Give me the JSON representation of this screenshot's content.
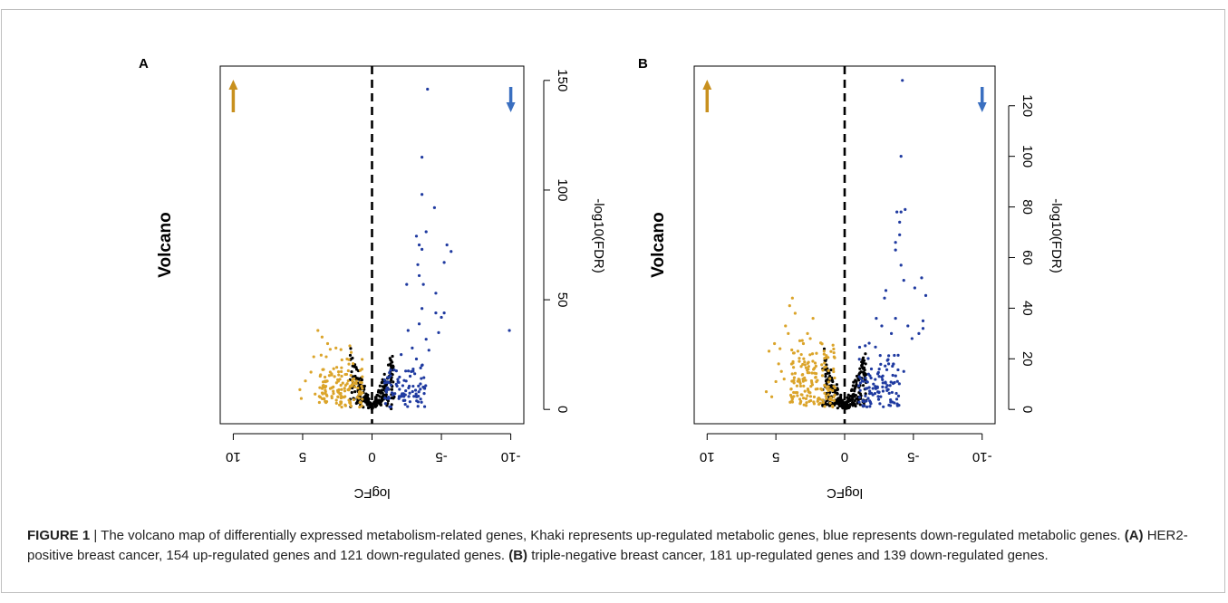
{
  "figure": {
    "caption_label": "FIGURE 1",
    "caption_sep": " | ",
    "caption_intro": "The volcano map of differentially expressed metabolism-related genes, Khaki represents up-regulated metabolic genes, blue represents down-regulated metabolic genes. ",
    "caption_a_label": "(A)",
    "caption_a_text": " HER2-positive breast cancer, 154 up-regulated genes and 121 down-regulated genes. ",
    "caption_b_label": "(B)",
    "caption_b_text": " triple-negative breast cancer, 181 up-regulated genes and 139 down-regulated genes."
  },
  "colors": {
    "up": "#dba42a",
    "down": "#1f3aa0",
    "neutral": "#000000",
    "arrow_up": "#c8901e",
    "arrow_down": "#3a6fc0"
  },
  "chart_data": [
    {
      "panel": "A",
      "type": "scatter",
      "title": "Volcano",
      "xlabel": "logFC",
      "ylabel": "-log10(FDR)",
      "xlim": [
        10,
        -10
      ],
      "ylim": [
        0,
        150
      ],
      "xticks": [
        10,
        5,
        0,
        -5,
        -10
      ],
      "yticks": [
        0,
        50,
        100,
        150
      ],
      "cutoff_x": 0,
      "up_count": 154,
      "down_count": 121,
      "seed": 11,
      "up_points": [
        [
          3.9,
          36
        ],
        [
          3.6,
          33
        ],
        [
          3.2,
          30
        ],
        [
          4.2,
          24
        ],
        [
          5.2,
          9
        ],
        [
          5.1,
          5
        ],
        [
          4.8,
          13
        ],
        [
          4.4,
          17
        ],
        [
          3.3,
          24
        ],
        [
          2.6,
          28
        ],
        [
          2.2,
          19
        ],
        [
          1.8,
          23
        ],
        [
          1.5,
          26
        ],
        [
          1.3,
          14
        ],
        [
          1.9,
          11
        ],
        [
          2.7,
          15
        ],
        [
          3.5,
          11
        ],
        [
          4.1,
          7
        ],
        [
          2.9,
          6
        ],
        [
          1.6,
          29
        ]
      ],
      "up_cluster": {
        "x_center": 2.2,
        "x_spread": 1.6,
        "y_max": 28,
        "n": 134
      },
      "down_points": [
        [
          -4.0,
          146
        ],
        [
          -3.6,
          115
        ],
        [
          -4.5,
          92
        ],
        [
          -3.6,
          98
        ],
        [
          -5.4,
          75
        ],
        [
          -5.7,
          72
        ],
        [
          -5.2,
          67
        ],
        [
          -3.2,
          79
        ],
        [
          -3.4,
          75
        ],
        [
          -3.6,
          73
        ],
        [
          -3.9,
          81
        ],
        [
          -3.3,
          66
        ],
        [
          -3.4,
          61
        ],
        [
          -4.6,
          53
        ],
        [
          -3.7,
          57
        ],
        [
          -2.5,
          57
        ],
        [
          -4.6,
          44
        ],
        [
          -5.2,
          44
        ],
        [
          -5.0,
          42
        ],
        [
          -3.6,
          46
        ],
        [
          -3.4,
          39
        ],
        [
          -4.8,
          35
        ],
        [
          -9.9,
          36
        ],
        [
          -3.9,
          32
        ],
        [
          -2.6,
          36
        ],
        [
          -2.9,
          28
        ],
        [
          -4.1,
          27
        ],
        [
          -3.2,
          23
        ],
        [
          -2.1,
          25
        ],
        [
          -1.6,
          18
        ]
      ],
      "down_cluster": {
        "x_center": -2.4,
        "x_spread": 1.5,
        "y_max": 26,
        "n": 91
      },
      "neutral_cluster": {
        "n": 230,
        "x_max": 1.6,
        "y_scale": 17
      }
    },
    {
      "panel": "B",
      "type": "scatter",
      "title": "Volcano",
      "xlabel": "logFC",
      "ylabel": "-log10(FDR)",
      "xlim": [
        10,
        -10
      ],
      "ylim": [
        0,
        130
      ],
      "xticks": [
        10,
        5,
        0,
        -5,
        -10
      ],
      "yticks": [
        0,
        20,
        40,
        60,
        80,
        100,
        120
      ],
      "cutoff_x": 0,
      "up_count": 181,
      "down_count": 139,
      "seed": 23,
      "up_points": [
        [
          3.8,
          44
        ],
        [
          4.0,
          41
        ],
        [
          3.6,
          38
        ],
        [
          4.3,
          33
        ],
        [
          4.1,
          30
        ],
        [
          5.1,
          26
        ],
        [
          4.7,
          24
        ],
        [
          5.5,
          23
        ],
        [
          4.8,
          18
        ],
        [
          4.6,
          15
        ],
        [
          5.0,
          11
        ],
        [
          5.7,
          7
        ],
        [
          5.3,
          5
        ],
        [
          4.4,
          12
        ],
        [
          3.4,
          23
        ],
        [
          3.0,
          26
        ],
        [
          2.7,
          30
        ],
        [
          2.3,
          36
        ],
        [
          3.3,
          19
        ],
        [
          2.5,
          28
        ],
        [
          3.9,
          8
        ]
      ],
      "up_cluster": {
        "x_center": 2.3,
        "x_spread": 1.7,
        "y_max": 30,
        "n": 160
      },
      "down_points": [
        [
          -4.2,
          130
        ],
        [
          -4.1,
          100
        ],
        [
          -4.4,
          79
        ],
        [
          -4.1,
          78
        ],
        [
          -3.8,
          78
        ],
        [
          -4.0,
          74
        ],
        [
          -4.0,
          69
        ],
        [
          -3.7,
          66
        ],
        [
          -3.7,
          63
        ],
        [
          -4.1,
          57
        ],
        [
          -4.3,
          51
        ],
        [
          -5.6,
          52
        ],
        [
          -5.9,
          45
        ],
        [
          -5.1,
          48
        ],
        [
          -2.9,
          44
        ],
        [
          -3.0,
          47
        ],
        [
          -5.7,
          35
        ],
        [
          -5.7,
          32
        ],
        [
          -5.4,
          30
        ],
        [
          -4.6,
          33
        ],
        [
          -3.7,
          36
        ],
        [
          -3.4,
          30
        ],
        [
          -2.7,
          33
        ],
        [
          -2.3,
          36
        ],
        [
          -4.9,
          28
        ],
        [
          -4.3,
          15
        ],
        [
          -3.2,
          18
        ]
      ],
      "down_cluster": {
        "x_center": -2.5,
        "x_spread": 1.5,
        "y_max": 27,
        "n": 112
      },
      "neutral_cluster": {
        "n": 260,
        "x_max": 1.6,
        "y_scale": 15
      }
    }
  ]
}
